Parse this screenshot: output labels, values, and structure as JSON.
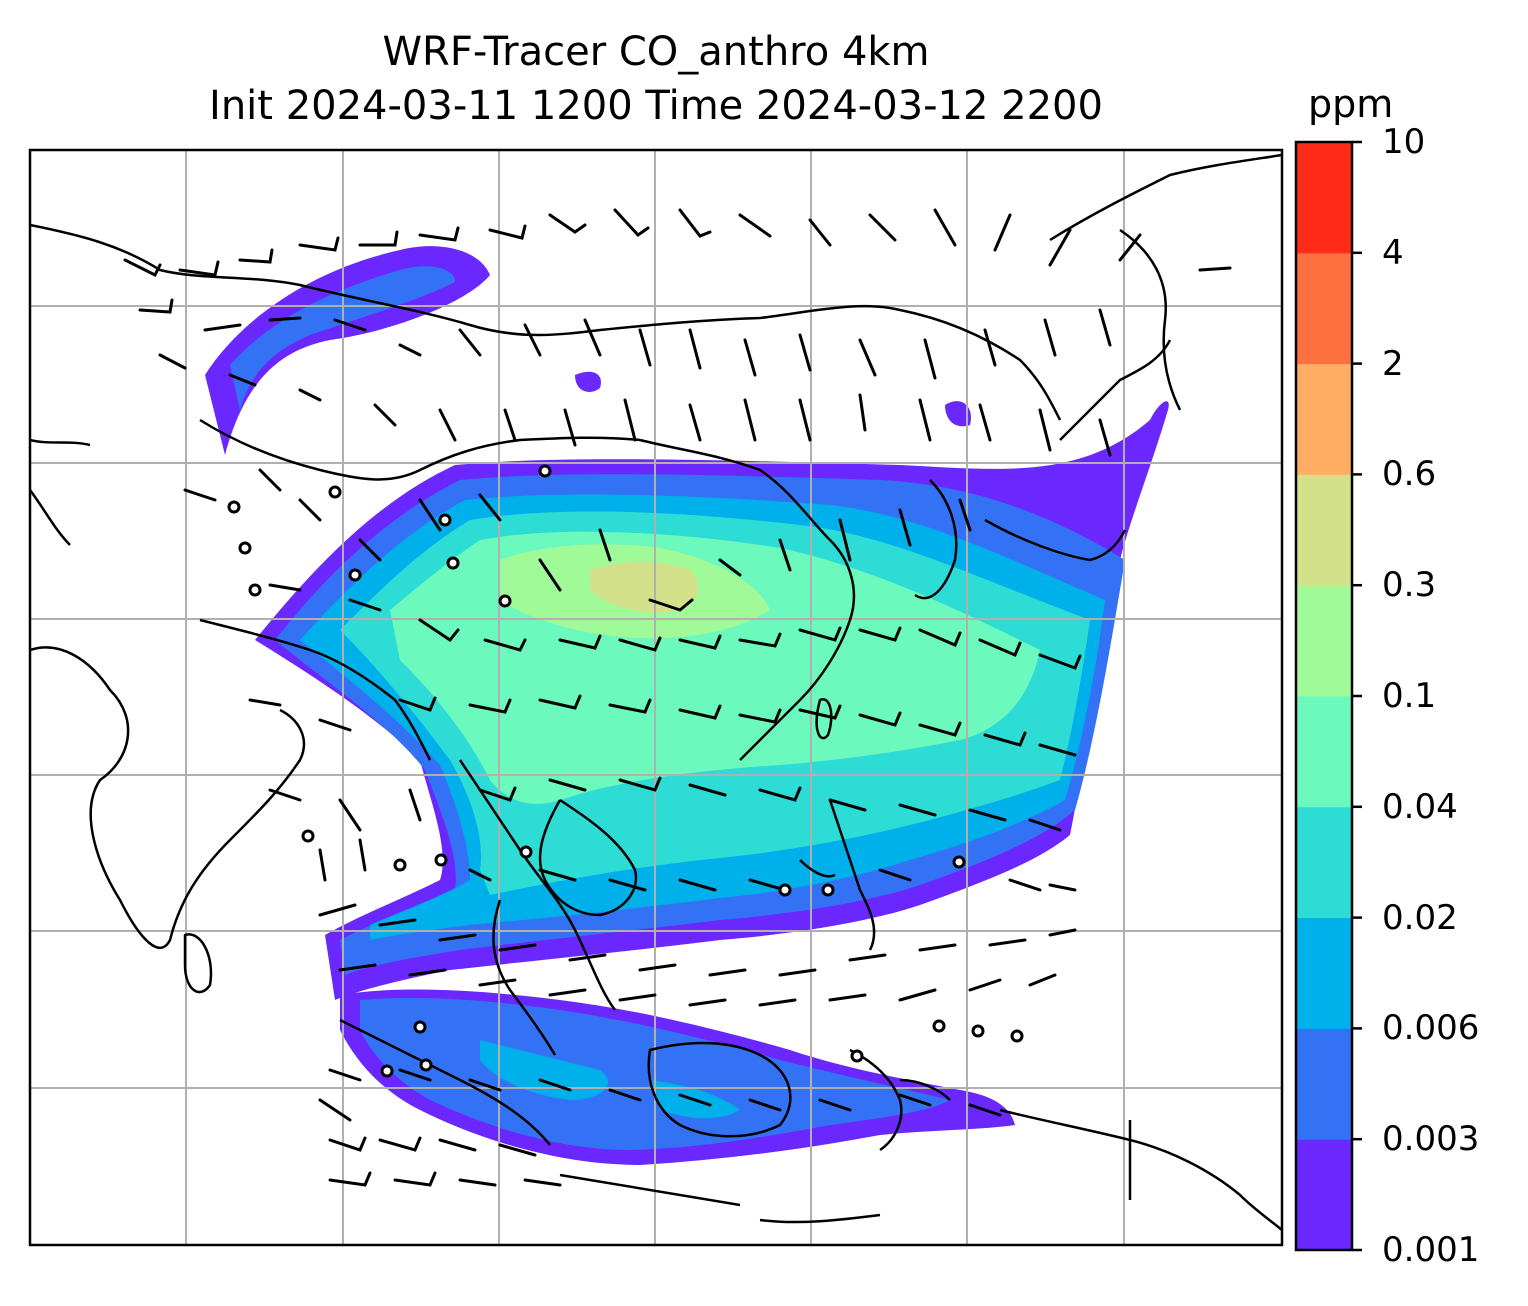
{
  "title": {
    "line1": "WRF-Tracer CO_anthro 4km",
    "line2": "Init 2024-03-11 1200 Time 2024-03-12 2200"
  },
  "colorbar": {
    "unit": "ppm",
    "levels": [
      "0.001",
      "0.003",
      "0.006",
      "0.02",
      "0.04",
      "0.1",
      "0.3",
      "0.6",
      "2",
      "4",
      "10"
    ],
    "colors": [
      "#6a28ff",
      "#3472f5",
      "#00b0ea",
      "#2edcd6",
      "#6cf9be",
      "#a0fa98",
      "#d3e28a",
      "#ffae63",
      "#ff7040",
      "#ff2a17"
    ]
  },
  "map": {
    "field": "CO_anthro",
    "background": "#ffffff",
    "coastline_color": "#000000",
    "gridline_color": "#b0b0b0",
    "wind_barb_color": "#000000"
  }
}
